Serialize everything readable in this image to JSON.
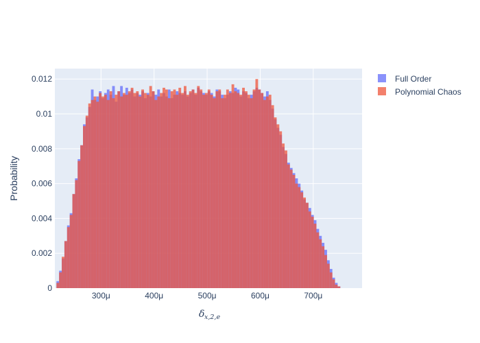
{
  "chart_data": {
    "type": "histogram",
    "xlabel": "δx,2,e",
    "ylabel": "Probability",
    "x_range": [
      0.000213,
      0.000792
    ],
    "ylim": [
      0,
      0.0126
    ],
    "bin_start": 0.000216,
    "bin_width": 5e-06,
    "barmode": "overlay",
    "x_ticks": [
      {
        "value": 0.0003,
        "label": "300μ"
      },
      {
        "value": 0.0004,
        "label": "400μ"
      },
      {
        "value": 0.0005,
        "label": "500μ"
      },
      {
        "value": 0.0006,
        "label": "600μ"
      },
      {
        "value": 0.0007,
        "label": "700μ"
      }
    ],
    "y_ticks": [
      {
        "value": 0,
        "label": "0"
      },
      {
        "value": 0.002,
        "label": "0.002"
      },
      {
        "value": 0.004,
        "label": "0.004"
      },
      {
        "value": 0.006,
        "label": "0.006"
      },
      {
        "value": 0.008,
        "label": "0.008"
      },
      {
        "value": 0.01,
        "label": "0.01"
      },
      {
        "value": 0.012,
        "label": "0.012"
      }
    ],
    "series": [
      {
        "name": "Full Order",
        "color": "#636efa",
        "values": [
          0.0004,
          0.001,
          0.0017,
          0.0027,
          0.0036,
          0.0043,
          0.0054,
          0.0063,
          0.0074,
          0.0082,
          0.0094,
          0.0098,
          0.0104,
          0.0114,
          0.0108,
          0.011,
          0.0113,
          0.0109,
          0.0112,
          0.0114,
          0.0111,
          0.0116,
          0.0107,
          0.0113,
          0.0116,
          0.0111,
          0.0115,
          0.0112,
          0.0114,
          0.011,
          0.0112,
          0.0111,
          0.0113,
          0.0109,
          0.0112,
          0.011,
          0.0113,
          0.0111,
          0.0114,
          0.011,
          0.0112,
          0.011,
          0.0114,
          0.0109,
          0.0111,
          0.0113,
          0.0112,
          0.0111,
          0.0113,
          0.011,
          0.0112,
          0.0114,
          0.0111,
          0.0115,
          0.0113,
          0.0112,
          0.0111,
          0.0113,
          0.0112,
          0.011,
          0.0114,
          0.0113,
          0.0111,
          0.0109,
          0.0111,
          0.0113,
          0.0112,
          0.0115,
          0.0114,
          0.011,
          0.0113,
          0.0112,
          0.0109,
          0.0111,
          0.0113,
          0.0115,
          0.0114,
          0.0112,
          0.011,
          0.0113,
          0.0108,
          0.0103,
          0.0097,
          0.0092,
          0.0088,
          0.0081,
          0.0077,
          0.0072,
          0.0069,
          0.0066,
          0.0063,
          0.006,
          0.0056,
          0.0051,
          0.0049,
          0.0046,
          0.0042,
          0.0039,
          0.0034,
          0.003,
          0.0026,
          0.0022,
          0.0016,
          0.0011,
          0.0006,
          0.0003,
          0.0001
        ]
      },
      {
        "name": "Polynomial Chaos",
        "color": "#ef553b",
        "values": [
          0.0003,
          0.0009,
          0.0018,
          0.0027,
          0.0035,
          0.0042,
          0.0054,
          0.0062,
          0.0073,
          0.0082,
          0.0093,
          0.0099,
          0.0106,
          0.0108,
          0.011,
          0.0107,
          0.0112,
          0.011,
          0.0111,
          0.0108,
          0.0113,
          0.0109,
          0.0111,
          0.0113,
          0.011,
          0.0112,
          0.0111,
          0.0113,
          0.0115,
          0.0112,
          0.0113,
          0.011,
          0.0114,
          0.0112,
          0.0111,
          0.0116,
          0.0113,
          0.0108,
          0.011,
          0.0112,
          0.0115,
          0.0114,
          0.0109,
          0.0113,
          0.0114,
          0.0111,
          0.0115,
          0.0112,
          0.0116,
          0.0111,
          0.0113,
          0.0114,
          0.0112,
          0.0116,
          0.0114,
          0.0111,
          0.0112,
          0.0114,
          0.0111,
          0.0109,
          0.0113,
          0.0114,
          0.0109,
          0.0111,
          0.0114,
          0.0112,
          0.0117,
          0.0113,
          0.0112,
          0.0111,
          0.0115,
          0.0113,
          0.0111,
          0.0109,
          0.0114,
          0.012,
          0.0114,
          0.0112,
          0.0108,
          0.011,
          0.0111,
          0.0105,
          0.0098,
          0.0094,
          0.009,
          0.0083,
          0.0079,
          0.0071,
          0.0068,
          0.0065,
          0.006,
          0.0058,
          0.0055,
          0.0052,
          0.0049,
          0.0044,
          0.0041,
          0.0037,
          0.0032,
          0.0028,
          0.0024,
          0.0019,
          0.0014,
          0.0009,
          0.0005,
          0.0002,
          0.0001
        ]
      }
    ]
  }
}
